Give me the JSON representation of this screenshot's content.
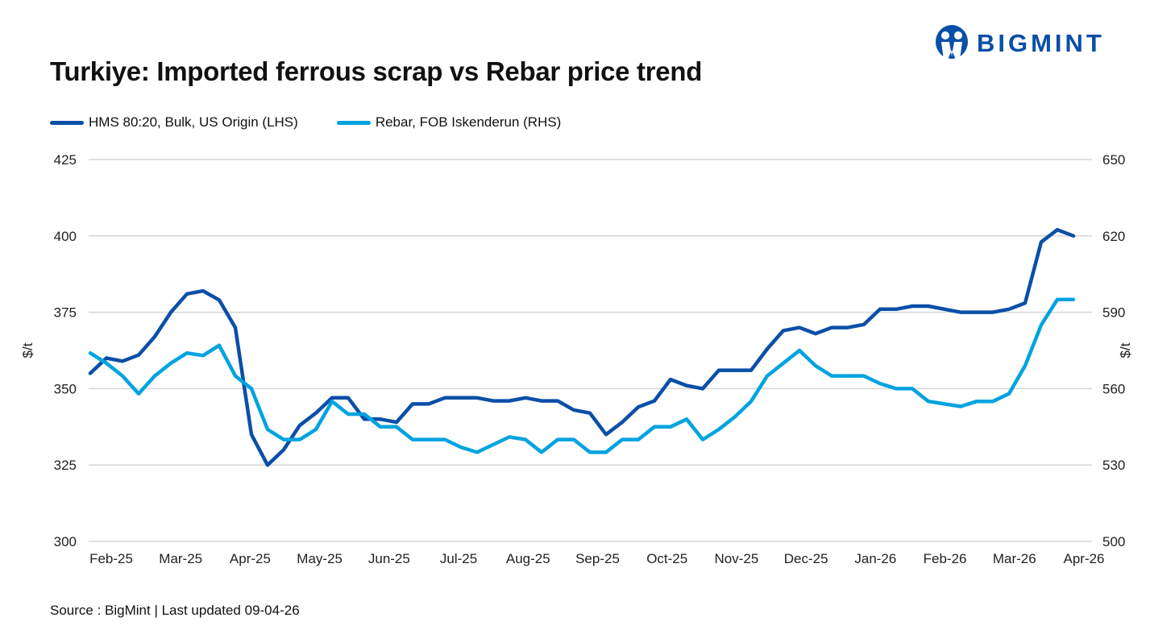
{
  "header": {
    "title": "Turkiye: Imported ferrous scrap vs Rebar price trend",
    "logo_text": "BIGMINT"
  },
  "footer": {
    "source": "Source : BigMint | Last updated 09-04-26"
  },
  "chart_data": {
    "type": "line",
    "title": "Turkiye: Imported ferrous scrap vs Rebar price trend",
    "ylabel_left": "$/t",
    "ylabel_right": "$/t",
    "ylim_left": [
      300,
      425
    ],
    "ylim_right": [
      500,
      650
    ],
    "yticks_left": [
      "300",
      "325",
      "350",
      "375",
      "400",
      "425"
    ],
    "yticks_right": [
      "500",
      "530",
      "560",
      "590",
      "620",
      "650"
    ],
    "xticks": [
      "Feb-25",
      "Mar-25",
      "Apr-25",
      "May-25",
      "Jun-25",
      "Jul-25",
      "Aug-25",
      "Sep-25",
      "Oct-25",
      "Nov-25",
      "Dec-25",
      "Jan-26",
      "Feb-26",
      "Mar-26",
      "Apr-26"
    ],
    "grid": true,
    "legend_placement": "top-left",
    "series": [
      {
        "name": "HMS 80:20, Bulk, US Origin (LHS)",
        "axis": "left",
        "color": "#0a4fa8",
        "values": [
          355,
          360,
          359,
          361,
          367,
          375,
          381,
          382,
          379,
          370,
          335,
          325,
          330,
          338,
          342,
          347,
          347,
          340,
          340,
          339,
          345,
          345,
          347,
          347,
          347,
          346,
          346,
          347,
          346,
          346,
          343,
          342,
          335,
          339,
          344,
          346,
          353,
          351,
          350,
          356,
          356,
          356,
          363,
          369,
          370,
          368,
          370,
          370,
          371,
          376,
          376,
          377,
          377,
          376,
          375,
          375,
          375,
          376,
          378,
          398,
          402,
          400
        ]
      },
      {
        "name": "Rebar, FOB Iskenderun (RHS)",
        "axis": "right",
        "color": "#00a3e0",
        "values": [
          574,
          570,
          565,
          558,
          565,
          570,
          574,
          573,
          577,
          565,
          560,
          544,
          540,
          540,
          544,
          555,
          550,
          550,
          545,
          545,
          540,
          540,
          540,
          537,
          535,
          538,
          541,
          540,
          535,
          540,
          540,
          535,
          535,
          540,
          540,
          545,
          545,
          548,
          540,
          544,
          549,
          555,
          565,
          570,
          575,
          569,
          565,
          565,
          565,
          562,
          560,
          560,
          555,
          554,
          553,
          555,
          555,
          558,
          569,
          585,
          595,
          595
        ]
      }
    ]
  }
}
